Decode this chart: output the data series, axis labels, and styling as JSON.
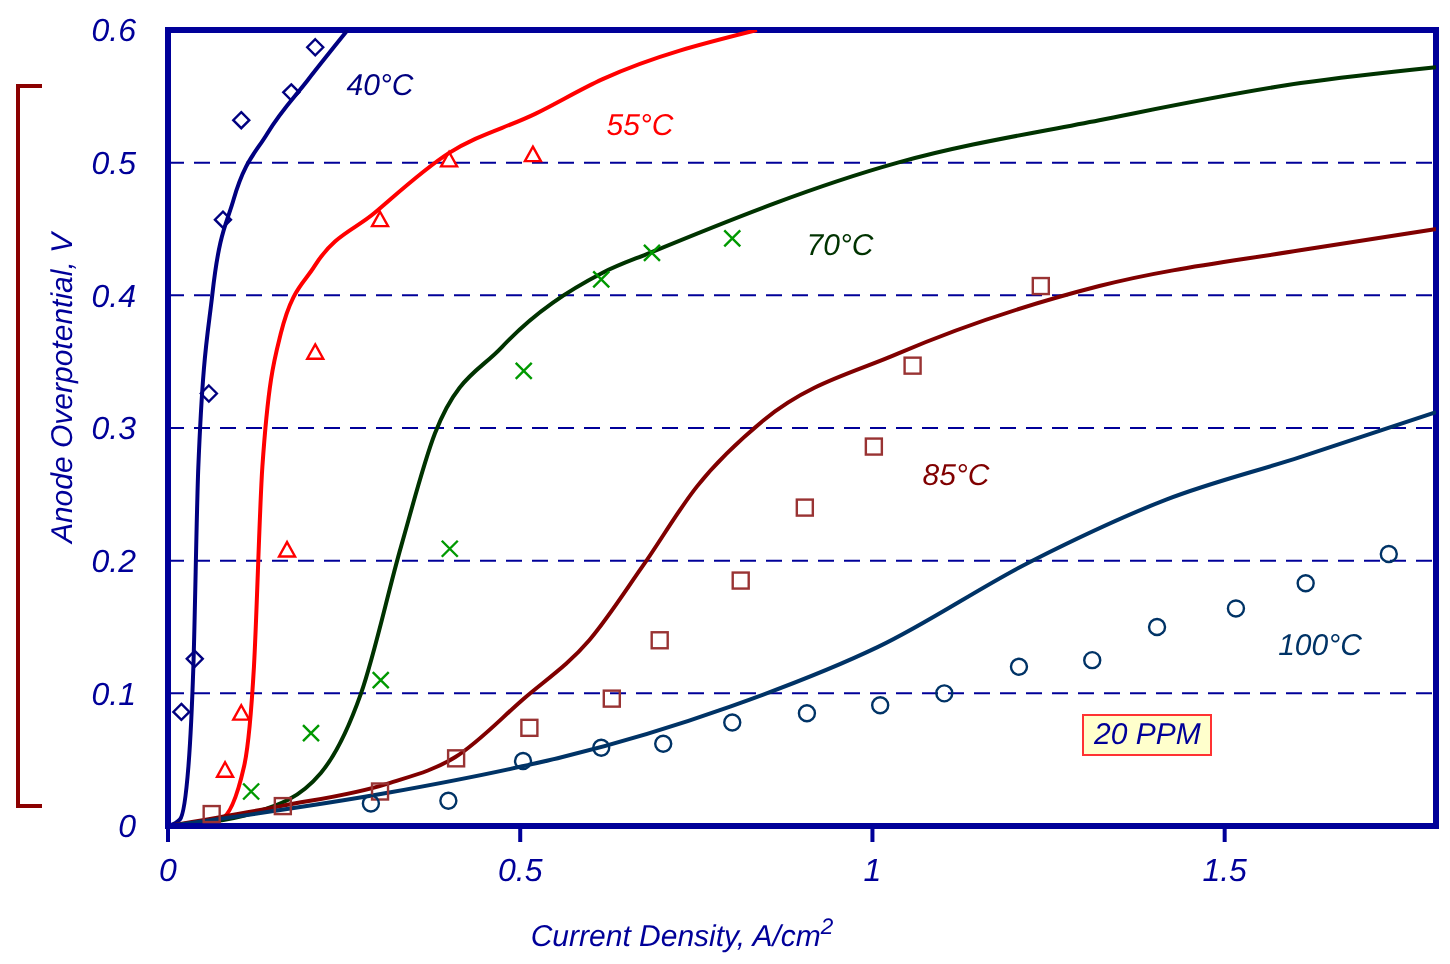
{
  "chart_data": {
    "type": "line",
    "xlabel": "Current Density, A/cm$^{2}$",
    "ylabel": "Anode Overpotential, V",
    "xlim": [
      0,
      1.8
    ],
    "xticks": [
      0,
      0.5,
      1,
      1.5
    ],
    "ylim": [
      0,
      0.6
    ],
    "yticks": [
      0,
      0.1,
      0.2,
      0.3,
      0.4,
      0.5,
      0.6
    ],
    "grid": "y",
    "series": [
      {
        "color": "#000080",
        "marker": "none",
        "x": [
          0,
          0.017,
          0.029,
          0.036,
          0.043,
          0.063,
          0.093,
          0.141,
          0.198,
          0.255
        ],
        "values": [
          0,
          0.005,
          0.045,
          0.12,
          0.27,
          0.401,
          0.472,
          0.522,
          0.562,
          0.6
        ]
      },
      {
        "type": "scatter",
        "color": "#000080",
        "marker": "diamond",
        "x": [
          0.019,
          0.038,
          0.058,
          0.078,
          0.104,
          0.175,
          0.209
        ],
        "values": [
          0.086,
          0.126,
          0.326,
          0.457,
          0.532,
          0.553,
          0.587
        ]
      },
      {
        "color": "#ff0000",
        "marker": "none",
        "x": [
          0,
          0.074,
          0.108,
          0.122,
          0.134,
          0.16,
          0.208,
          0.293,
          0.398,
          0.522,
          0.617,
          0.836
        ],
        "values": [
          0,
          0.005,
          0.045,
          0.12,
          0.271,
          0.371,
          0.422,
          0.462,
          0.507,
          0.537,
          0.563,
          0.6
        ]
      },
      {
        "type": "scatter",
        "color": "#ff0000",
        "marker": "triangle",
        "x": [
          0.081,
          0.104,
          0.169,
          0.209,
          0.301,
          0.399,
          0.518
        ],
        "values": [
          0.042,
          0.085,
          0.208,
          0.357,
          0.457,
          0.502,
          0.506
        ]
      },
      {
        "color": "#003300",
        "marker": "none",
        "x": [
          0,
          0.122,
          0.217,
          0.274,
          0.331,
          0.379,
          0.474,
          0.617,
          0.684,
          1.036,
          1.322,
          1.608,
          1.8
        ],
        "values": [
          0,
          0.01,
          0.04,
          0.1,
          0.211,
          0.296,
          0.361,
          0.417,
          0.432,
          0.5,
          0.532,
          0.56,
          0.572
        ]
      },
      {
        "type": "scatter",
        "color": "#009900",
        "marker": "cross",
        "x": [
          0.118,
          0.203,
          0.302,
          0.4,
          0.505,
          0.615,
          0.687,
          0.801
        ],
        "values": [
          0.026,
          0.07,
          0.11,
          0.209,
          0.343,
          0.412,
          0.432,
          0.443
        ]
      },
      {
        "color": "#800000",
        "marker": "none",
        "x": [
          0,
          0.16,
          0.312,
          0.408,
          0.503,
          0.598,
          0.674,
          0.751,
          0.846,
          1.036,
          1.322,
          1.607,
          1.8
        ],
        "values": [
          0,
          0.015,
          0.032,
          0.052,
          0.095,
          0.14,
          0.196,
          0.256,
          0.306,
          0.356,
          0.407,
          0.434,
          0.45
        ]
      },
      {
        "type": "scatter",
        "color": "#993333",
        "marker": "square",
        "x": [
          0.062,
          0.163,
          0.301,
          0.409,
          0.513,
          0.63,
          0.698,
          0.813,
          0.904,
          1.002,
          1.057,
          1.239
        ],
        "values": [
          0.009,
          0.015,
          0.026,
          0.051,
          0.074,
          0.096,
          0.14,
          0.185,
          0.24,
          0.286,
          0.347,
          0.407
        ]
      },
      {
        "color": "#003366",
        "marker": "none",
        "x": [
          0,
          0.312,
          0.503,
          0.56,
          0.798,
          1.008,
          1.227,
          1.417,
          1.607,
          1.8
        ],
        "values": [
          0,
          0.025,
          0.045,
          0.052,
          0.09,
          0.135,
          0.2,
          0.246,
          0.278,
          0.312
        ]
      },
      {
        "type": "scatter",
        "color": "#003366",
        "marker": "circle",
        "x": [
          0.288,
          0.398,
          0.504,
          0.615,
          0.703,
          0.801,
          0.907,
          1.011,
          1.102,
          1.208,
          1.312,
          1.404,
          1.516,
          1.615,
          1.733
        ],
        "values": [
          0.017,
          0.019,
          0.049,
          0.059,
          0.062,
          0.078,
          0.085,
          0.091,
          0.1,
          0.12,
          0.125,
          0.15,
          0.164,
          0.183,
          0.205
        ]
      }
    ],
    "annotations": [
      "40°C",
      "55°C",
      "70°C",
      "85°C",
      "100°C",
      "20 PPM"
    ]
  }
}
